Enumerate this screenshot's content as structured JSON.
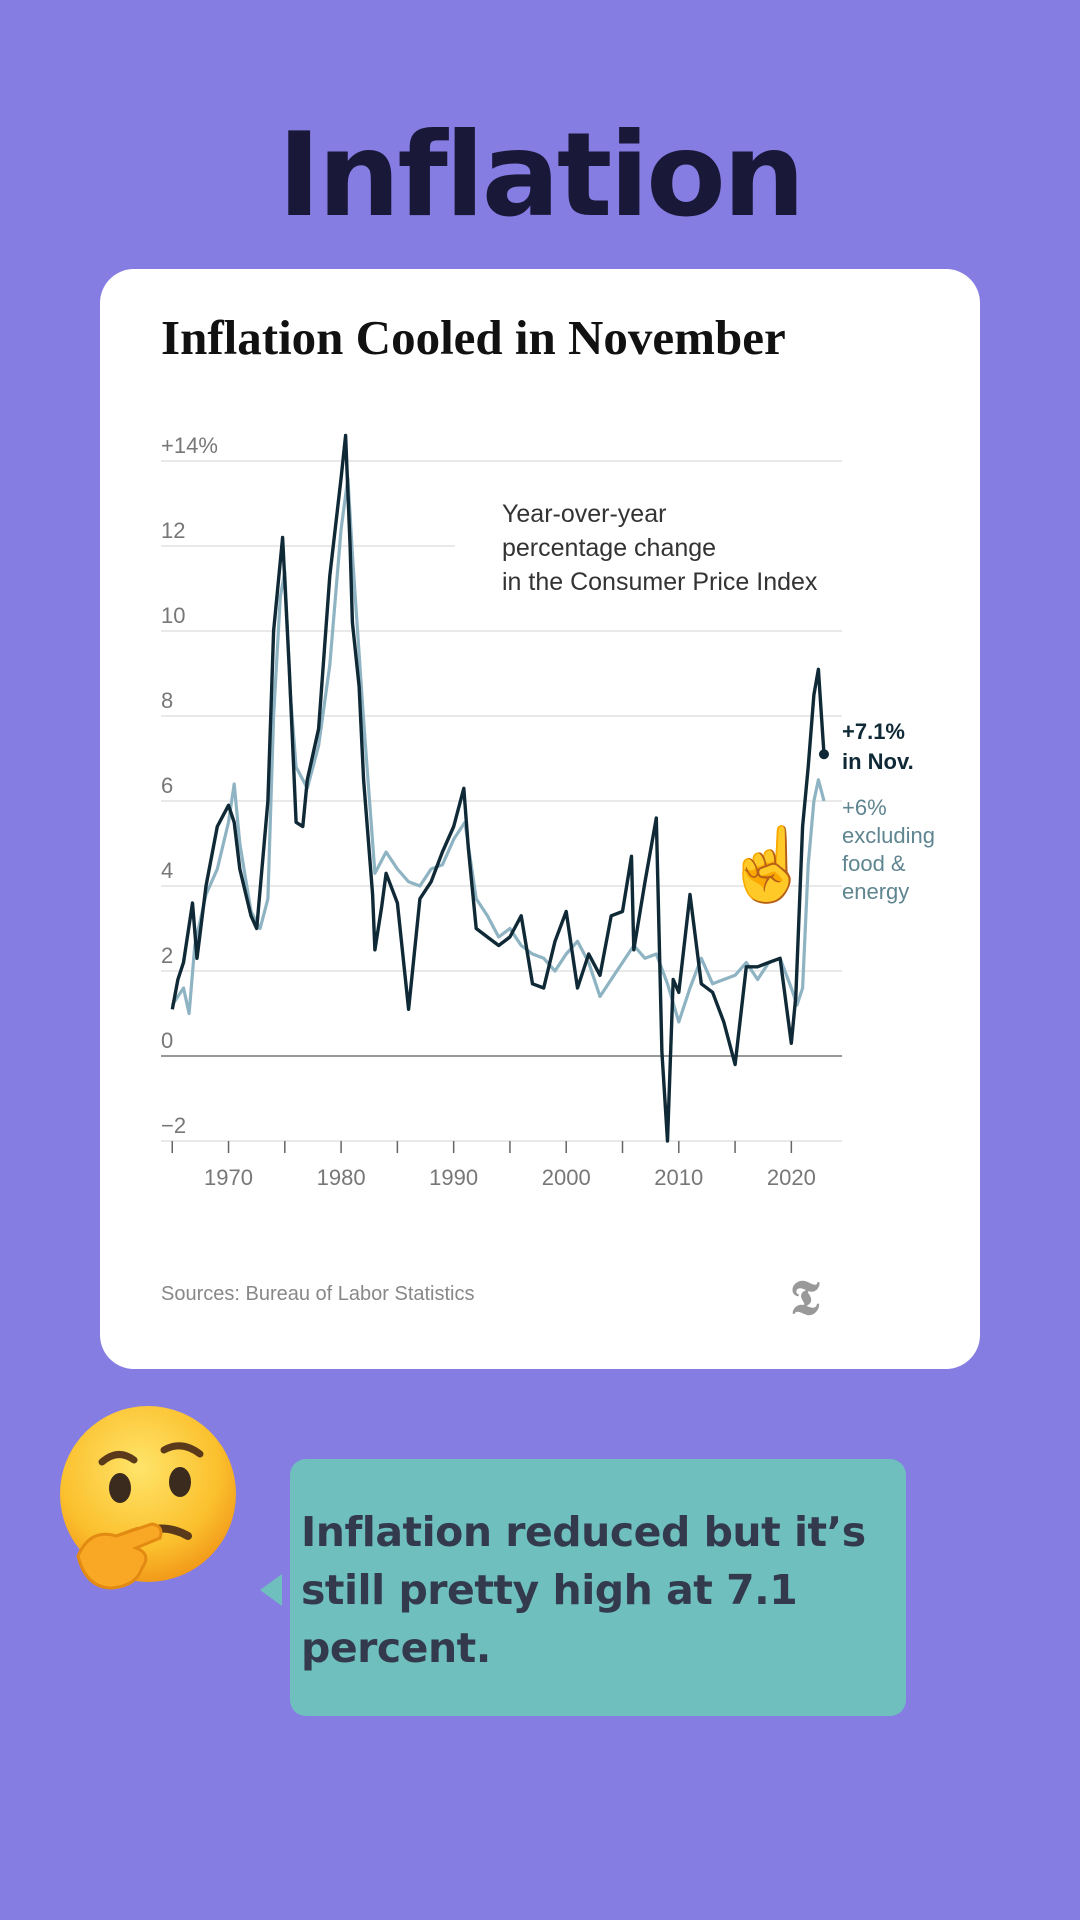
{
  "page": {
    "title": "Inflation"
  },
  "chart_data": {
    "type": "line",
    "title": "Inflation Cooled in November",
    "annotation": [
      "Year-over-year",
      "percentage change",
      "in the Consumer Price Index"
    ],
    "ytick_labels": [
      "+14%",
      "12",
      "10",
      "8",
      "6",
      "4",
      "2",
      "0",
      "−2"
    ],
    "ytick_values": [
      14,
      12,
      10,
      8,
      6,
      4,
      2,
      0,
      -2
    ],
    "xtick_labels": [
      "1970",
      "1980",
      "1990",
      "2000",
      "2010",
      "2020"
    ],
    "xtick_values": [
      1970,
      1980,
      1990,
      2000,
      2010,
      2020
    ],
    "xlim": [
      1964,
      2024.5
    ],
    "ylim": [
      -2,
      14
    ],
    "grid": true,
    "series": [
      {
        "name": "+6% excluding food & energy",
        "color": "#8EB3C2",
        "end_label": [
          "+6%",
          "excluding",
          "food &",
          "energy"
        ],
        "points": [
          [
            1965,
            1.2
          ],
          [
            1966,
            1.6
          ],
          [
            1966.5,
            1.0
          ],
          [
            1967,
            2.6
          ],
          [
            1968,
            3.8
          ],
          [
            1969,
            4.4
          ],
          [
            1970,
            5.5
          ],
          [
            1970.5,
            6.4
          ],
          [
            1971,
            5.0
          ],
          [
            1972,
            3.4
          ],
          [
            1972.8,
            3.0
          ],
          [
            1973.5,
            3.7
          ],
          [
            1974,
            8.0
          ],
          [
            1974.6,
            10.8
          ],
          [
            1975,
            11.4
          ],
          [
            1975.5,
            8.5
          ],
          [
            1976,
            6.8
          ],
          [
            1977,
            6.3
          ],
          [
            1978,
            7.3
          ],
          [
            1979,
            9.2
          ],
          [
            1980,
            12.4
          ],
          [
            1980.6,
            13.6
          ],
          [
            1981,
            11.8
          ],
          [
            1982,
            7.9
          ],
          [
            1983,
            4.3
          ],
          [
            1984,
            4.8
          ],
          [
            1985,
            4.4
          ],
          [
            1986,
            4.1
          ],
          [
            1987,
            4.0
          ],
          [
            1988,
            4.4
          ],
          [
            1989,
            4.5
          ],
          [
            1990,
            5.1
          ],
          [
            1991,
            5.5
          ],
          [
            1992,
            3.7
          ],
          [
            1993,
            3.3
          ],
          [
            1994,
            2.8
          ],
          [
            1995,
            3.0
          ],
          [
            1996,
            2.6
          ],
          [
            1997,
            2.4
          ],
          [
            1998,
            2.3
          ],
          [
            1999,
            2.0
          ],
          [
            2000,
            2.4
          ],
          [
            2001,
            2.7
          ],
          [
            2002,
            2.2
          ],
          [
            2003,
            1.4
          ],
          [
            2004,
            1.8
          ],
          [
            2005,
            2.2
          ],
          [
            2006,
            2.6
          ],
          [
            2007,
            2.3
          ],
          [
            2008,
            2.4
          ],
          [
            2009,
            1.7
          ],
          [
            2010,
            0.8
          ],
          [
            2011,
            1.6
          ],
          [
            2012,
            2.3
          ],
          [
            2013,
            1.7
          ],
          [
            2014,
            1.8
          ],
          [
            2015,
            1.9
          ],
          [
            2016,
            2.2
          ],
          [
            2017,
            1.8
          ],
          [
            2018,
            2.2
          ],
          [
            2019,
            2.3
          ],
          [
            2020,
            1.6
          ],
          [
            2020.5,
            1.2
          ],
          [
            2021,
            1.6
          ],
          [
            2021.5,
            4.5
          ],
          [
            2022,
            6.0
          ],
          [
            2022.4,
            6.5
          ],
          [
            2022.9,
            6.0
          ]
        ]
      },
      {
        "name": "+7.1% in Nov.",
        "color": "#0F2A36",
        "end_label": [
          "+7.1%",
          "in Nov."
        ],
        "points": [
          [
            1965,
            1.1
          ],
          [
            1965.5,
            1.8
          ],
          [
            1966,
            2.2
          ],
          [
            1966.8,
            3.6
          ],
          [
            1967.2,
            2.3
          ],
          [
            1968,
            4.0
          ],
          [
            1969,
            5.4
          ],
          [
            1970,
            5.9
          ],
          [
            1970.5,
            5.5
          ],
          [
            1971,
            4.4
          ],
          [
            1972,
            3.3
          ],
          [
            1972.5,
            3.0
          ],
          [
            1973.5,
            6.0
          ],
          [
            1974,
            10.0
          ],
          [
            1974.8,
            12.2
          ],
          [
            1975.4,
            9.1
          ],
          [
            1976,
            5.5
          ],
          [
            1976.6,
            5.4
          ],
          [
            1977,
            6.5
          ],
          [
            1978,
            7.7
          ],
          [
            1979,
            11.3
          ],
          [
            1980,
            13.6
          ],
          [
            1980.4,
            14.6
          ],
          [
            1980.8,
            12.0
          ],
          [
            1981,
            10.2
          ],
          [
            1981.6,
            8.7
          ],
          [
            1982,
            6.5
          ],
          [
            1982.8,
            3.8
          ],
          [
            1983,
            2.5
          ],
          [
            1983.6,
            3.5
          ],
          [
            1984,
            4.3
          ],
          [
            1985,
            3.6
          ],
          [
            1986,
            1.1
          ],
          [
            1987,
            3.7
          ],
          [
            1988,
            4.1
          ],
          [
            1989,
            4.8
          ],
          [
            1990,
            5.4
          ],
          [
            1990.9,
            6.3
          ],
          [
            1991.3,
            4.9
          ],
          [
            1992,
            3.0
          ],
          [
            1993,
            2.8
          ],
          [
            1994,
            2.6
          ],
          [
            1995,
            2.8
          ],
          [
            1996,
            3.3
          ],
          [
            1997,
            1.7
          ],
          [
            1998,
            1.6
          ],
          [
            1999,
            2.7
          ],
          [
            2000,
            3.4
          ],
          [
            2001,
            1.6
          ],
          [
            2002,
            2.4
          ],
          [
            2003,
            1.9
          ],
          [
            2004,
            3.3
          ],
          [
            2005,
            3.4
          ],
          [
            2005.8,
            4.7
          ],
          [
            2006,
            2.5
          ],
          [
            2007,
            4.1
          ],
          [
            2008,
            5.6
          ],
          [
            2008.5,
            0.1
          ],
          [
            2009,
            -2.0
          ],
          [
            2009.5,
            1.8
          ],
          [
            2010,
            1.5
          ],
          [
            2011,
            3.8
          ],
          [
            2012,
            1.7
          ],
          [
            2013,
            1.5
          ],
          [
            2014,
            0.8
          ],
          [
            2015,
            -0.2
          ],
          [
            2016,
            2.1
          ],
          [
            2017,
            2.1
          ],
          [
            2018,
            2.2
          ],
          [
            2019,
            2.3
          ],
          [
            2020,
            0.3
          ],
          [
            2020.4,
            1.4
          ],
          [
            2021,
            5.4
          ],
          [
            2021.5,
            6.8
          ],
          [
            2022,
            8.5
          ],
          [
            2022.4,
            9.1
          ],
          [
            2022.6,
            8.3
          ],
          [
            2022.9,
            7.1
          ]
        ]
      }
    ],
    "source": "Sources: Bureau of Labor Statistics",
    "logo": "𝕿"
  },
  "pointing_emoji": "☝️",
  "thinking_emoji": "🤔",
  "bubble": {
    "text": "Inflation reduced but it’s still pretty high at 7.1 percent."
  },
  "colors": {
    "background": "#857DE2",
    "bubble": "#6EBFBE",
    "card": "#FFFFFF"
  }
}
